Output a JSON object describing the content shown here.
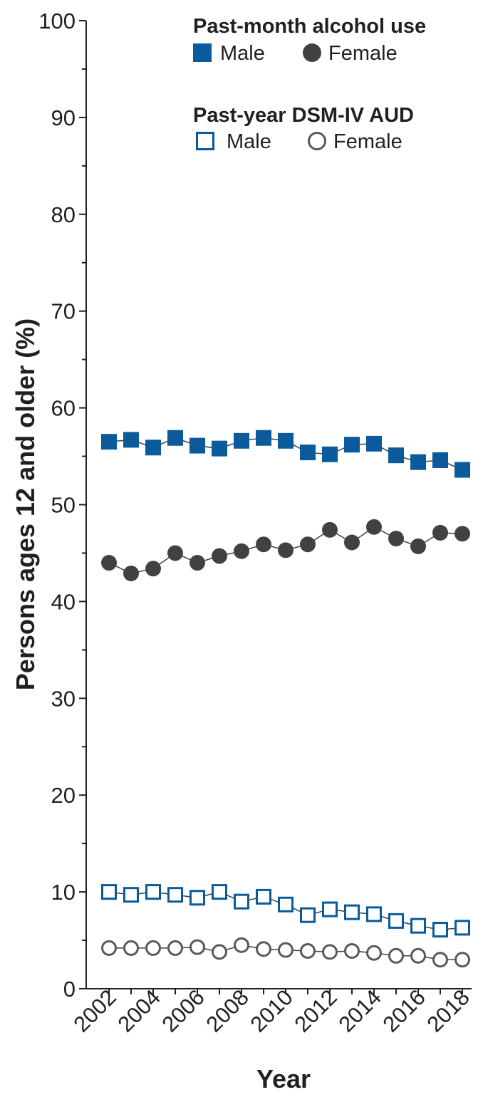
{
  "chart_data": {
    "type": "line",
    "x": [
      2002,
      2003,
      2004,
      2005,
      2006,
      2007,
      2008,
      2009,
      2010,
      2011,
      2012,
      2013,
      2014,
      2015,
      2016,
      2017,
      2018
    ],
    "x_tick_labels": [
      "2002",
      "2004",
      "2006",
      "2008",
      "2010",
      "2012",
      "2014",
      "2016",
      "2018"
    ],
    "y_tick_labels": [
      "0",
      "10",
      "20",
      "30",
      "40",
      "50",
      "60",
      "70",
      "80",
      "90",
      "100"
    ],
    "xlabel": "Year",
    "ylabel": "Persons ages 12 and older (%)",
    "ylim": [
      0,
      100
    ],
    "xlim": [
      2001,
      2018.5
    ],
    "grid": false,
    "legend_groups": [
      {
        "heading": "Past-month alcohol use",
        "entries": [
          "Male",
          "Female"
        ]
      },
      {
        "heading": "Past-year DSM-IV AUD",
        "entries": [
          "Male",
          "Female"
        ]
      }
    ],
    "series": [
      {
        "name": "Male",
        "group": "Past-month alcohol use",
        "marker": "square-filled",
        "color": "#0a5a9c",
        "values": [
          56.5,
          56.7,
          55.9,
          56.9,
          56.1,
          55.8,
          56.6,
          56.9,
          56.6,
          55.4,
          55.2,
          56.2,
          56.3,
          55.1,
          54.4,
          54.6,
          53.6
        ]
      },
      {
        "name": "Female",
        "group": "Past-month alcohol use",
        "marker": "circle-filled",
        "color": "#414042",
        "values": [
          44.0,
          42.9,
          43.4,
          45.0,
          44.0,
          44.7,
          45.2,
          45.9,
          45.3,
          45.9,
          47.4,
          46.1,
          47.7,
          46.5,
          45.7,
          47.1,
          47.0
        ]
      },
      {
        "name": "Male",
        "group": "Past-year DSM-IV AUD",
        "marker": "square-open",
        "color": "#0a5a9c",
        "values": [
          10.0,
          9.7,
          10.0,
          9.7,
          9.4,
          10.0,
          9.0,
          9.5,
          8.7,
          7.6,
          8.2,
          7.9,
          7.7,
          7.0,
          6.5,
          6.1,
          6.3
        ]
      },
      {
        "name": "Female",
        "group": "Past-year DSM-IV AUD",
        "marker": "circle-open",
        "color": "#58595b",
        "values": [
          4.2,
          4.2,
          4.2,
          4.2,
          4.3,
          3.8,
          4.5,
          4.1,
          4.0,
          3.9,
          3.8,
          3.9,
          3.7,
          3.4,
          3.4,
          3.0,
          3.0
        ]
      }
    ]
  }
}
